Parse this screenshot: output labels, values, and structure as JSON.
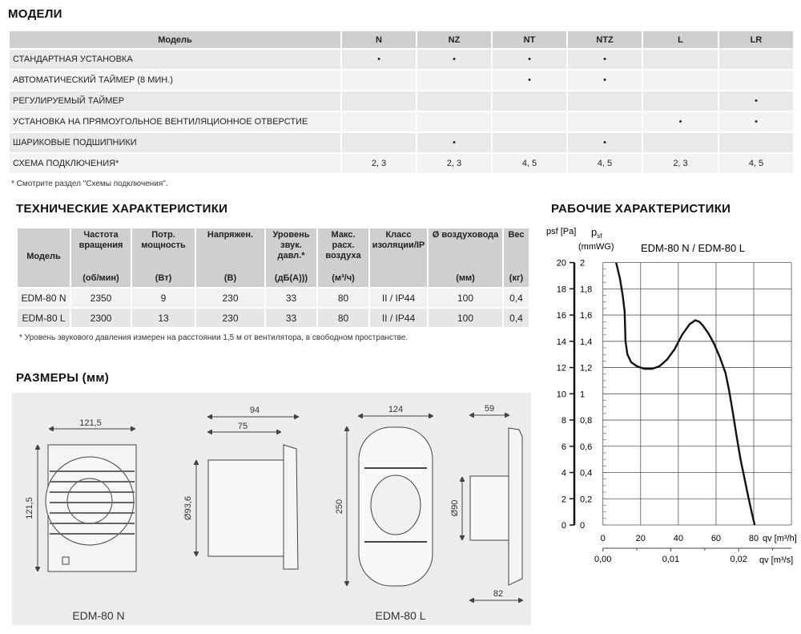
{
  "models_section": {
    "title": "МОДЕЛИ",
    "columns": [
      "Модель",
      "N",
      "NZ",
      "NT",
      "NTZ",
      "L",
      "LR"
    ],
    "rows": [
      {
        "label": "СТАНДАРТНАЯ УСТАНОВКА",
        "cells": [
          "•",
          "•",
          "•",
          "•",
          "",
          ""
        ]
      },
      {
        "label": "АВТОМАТИЧЕСКИЙ ТАЙМЕР (8 МИН.)",
        "cells": [
          "",
          "",
          "•",
          "•",
          "",
          ""
        ]
      },
      {
        "label": "РЕГУЛИРУЕМЫЙ ТАЙМЕР",
        "cells": [
          "",
          "",
          "",
          "",
          "",
          "•"
        ]
      },
      {
        "label": "УСТАНОВКА НА ПРЯМОУГОЛЬНОЕ ВЕНТИЛЯЦИОННОЕ ОТВЕРСТИЕ",
        "cells": [
          "",
          "",
          "",
          "",
          "•",
          "•"
        ]
      },
      {
        "label": "ШАРИКОВЫЕ ПОДШИПНИКИ",
        "cells": [
          "",
          "•",
          "",
          "•",
          "",
          ""
        ]
      },
      {
        "label": "СХЕМА ПОДКЛЮЧЕНИЯ*",
        "cells": [
          "2, 3",
          "2, 3",
          "4, 5",
          "4, 5",
          "2, 3",
          "4, 5"
        ]
      }
    ],
    "footnote": "* Смотрите раздел \"Схемы подключения\"."
  },
  "tech_section": {
    "title": "ТЕХНИЧЕСКИЕ ХАРАКТЕРИСТИКИ",
    "headers": [
      {
        "name": "Модель",
        "unit": ""
      },
      {
        "name": "Частота вращения",
        "unit": "(об/мин)"
      },
      {
        "name": "Потр. мощность",
        "unit": "(Вт)"
      },
      {
        "name": "Напряжен.",
        "unit": "(В)"
      },
      {
        "name": "Уровень звук. давл.*",
        "unit": "(дБ(А)))"
      },
      {
        "name": "Макс. расх. воздуха",
        "unit": "(м³/ч)"
      },
      {
        "name": "Класс изоляции/IP",
        "unit": ""
      },
      {
        "name": "Ø воздуховода",
        "unit": "(мм)"
      },
      {
        "name": "Вес",
        "unit": "(кг)"
      }
    ],
    "rows": [
      [
        "EDM-80 N",
        "2350",
        "9",
        "230",
        "33",
        "80",
        "II / IP44",
        "100",
        "0,4"
      ],
      [
        "EDM-80 L",
        "2300",
        "13",
        "230",
        "33",
        "80",
        "II / IP44",
        "100",
        "0,4"
      ]
    ],
    "footnote": "* Уровень звукового давления измерен на расстоянии 1,5 м от вентилятора, в свободном пространстве."
  },
  "dimensions_section": {
    "title": "РАЗМЕРЫ (мм)",
    "n": {
      "label": "EDM-80 N",
      "width": "121,5",
      "height": "121,5",
      "depth_total": "94",
      "depth_body": "75",
      "duct_diameter": "Ø93,6"
    },
    "l": {
      "label": "EDM-80 L",
      "width": "124",
      "height": "250",
      "depth_top": "59",
      "depth_bottom": "82",
      "duct_diameter": "Ø90"
    }
  },
  "chart_section": {
    "title": "РАБОЧИЕ ХАРАКТЕРИСТИКИ"
  },
  "chart_data": {
    "type": "line",
    "title": "EDM-80 N / EDM-80 L",
    "ylabel_left": "psf [Pa]",
    "ylabel_left_sym": "p",
    "ylabel_left_sub": "sf",
    "ylabel_left_unit": "[Pa]",
    "ylabel_right_unit": "(mmWG)",
    "xlabel": "qv [m³/h]",
    "xlabel2": "qv [m³/s]",
    "xlim": [
      0,
      100
    ],
    "ylim": [
      0,
      20
    ],
    "grid": true,
    "x_ticks": [
      "0",
      "20",
      "40",
      "60",
      "80"
    ],
    "y_ticks_pa": [
      "0",
      "2",
      "4",
      "6",
      "8",
      "10",
      "12",
      "14",
      "16",
      "18",
      "20"
    ],
    "y_ticks_mmwg": [
      "0",
      "0,2",
      "0,4",
      "0,6",
      "0,8",
      "1",
      "1,2",
      "1,4",
      "1,6",
      "1,8",
      "2"
    ],
    "x2_ticks": [
      "0,00",
      "0,01",
      "0,02"
    ],
    "series": [
      {
        "x": [
          7,
          9,
          10.5,
          11.5,
          12,
          13,
          15,
          18,
          22,
          26,
          30,
          34,
          38,
          42,
          46,
          49,
          51,
          53,
          56,
          59,
          62,
          65,
          67,
          69,
          71,
          73,
          75,
          77,
          79,
          80.5
        ],
        "y": [
          20,
          18.8,
          17.5,
          16.3,
          14,
          13,
          12.4,
          12.1,
          11.9,
          11.9,
          12.1,
          12.6,
          13.4,
          14.5,
          15.3,
          15.6,
          15.5,
          15.2,
          14.6,
          13.8,
          12.8,
          11.6,
          10.2,
          8.5,
          6.7,
          5,
          3.6,
          2.2,
          0.9,
          0
        ]
      }
    ]
  }
}
